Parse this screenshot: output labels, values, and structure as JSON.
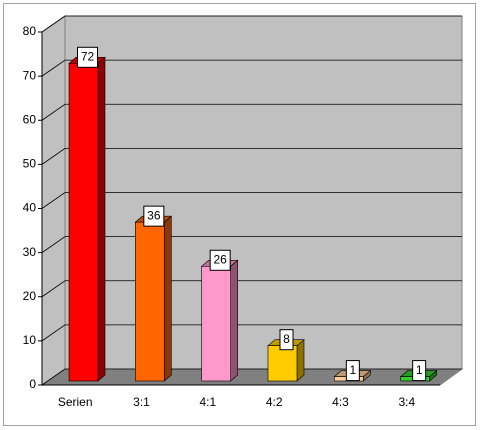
{
  "chart_data": {
    "type": "bar",
    "categories": [
      "Serien",
      "3:1",
      "4:1",
      "4:2",
      "4:3",
      "3:4"
    ],
    "values": [
      72,
      36,
      26,
      8,
      1,
      1
    ],
    "colors": [
      "#ff0000",
      "#ff6600",
      "#ff99cc",
      "#ffcc00",
      "#ffcc99",
      "#33cc33"
    ],
    "ylim": [
      0,
      80
    ],
    "yticks": [
      0,
      10,
      20,
      30,
      40,
      50,
      60,
      70,
      80
    ],
    "grid": true
  }
}
